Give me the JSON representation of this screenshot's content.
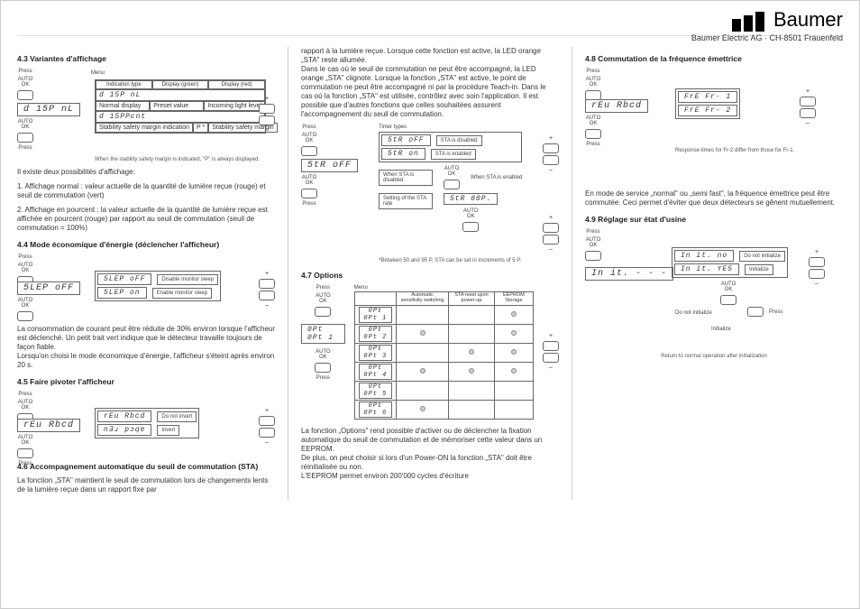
{
  "brand": "Baumer",
  "subbrand": "Baumer Electric AG · CH-8501 Frauenfeld",
  "s43": {
    "title": "4.3 Variantes d'affichage",
    "lcd_left": "d 15P  nL",
    "lcd_mid": "d 15P  nL",
    "lcd_bot": "d 15PPcnt",
    "menu": "Menu",
    "col1": "Indication type",
    "col2": "Display (green)",
    "col3": "Display (red)",
    "row1a": "Normal display",
    "row1b": "Preset value",
    "row1c": "Incoming light level",
    "row2a": "Stability safety margin indication",
    "row2b": "P *",
    "row2c": "Stability safety margin",
    "press": "Press",
    "autook": "AUTO\nOK",
    "footnote": "When the stability safety margin is indicated, \"P\" is always displayed.",
    "para1": "Il existe deux possibilités d'affichage:",
    "para2": "1. Affichage normal : valeur actuelle de la quantité de lumière reçue (rouge) et seuil de commutation (vert)",
    "para3": "2. Affichage en pourcent : la valeur actuelle de la quantité de lumière reçue est affichée en pourcent (rouge) par rapport au seuil de commutation (seuil de commutation = 100%)"
  },
  "s44": {
    "title": "4.4 Mode économique d'énergie (déclencher l'afficheur)",
    "lcd_left": "5LEP  oFF",
    "lcd_t1": "5LEP  oFF",
    "lcd_t2": "5LEP   on",
    "t1": "Disable monitor sleep",
    "t2": "Enable monitor sleep",
    "para": "La consommation de courant peut être réduite de 30% environ lorsque l'afficheur est déclenché. Un petit trait vert indique que le détecteur travaille toujours de façon fiable.\nLorsqu'on choisi le mode économique d'énergie, l'afficheur s'éteint après environ 20 s."
  },
  "s45": {
    "title": "4.5 Faire pivoter l'afficheur",
    "lcd_left": "rEu  Rbcd",
    "lcd_t1": "rEu  Rbcd",
    "lcd_t2": "nƎɹ  pɔqɐ",
    "t1": "Do not invert",
    "t2": "Invert"
  },
  "s46": {
    "title": "4.6 Accompagnement automatique du seuil de commutation (STA)",
    "para": "La fonction „STA\" maintient le seuil de commutation lors de changements lents de la lumière reçue dans un rapport fixe par"
  },
  "colB_top_para": "rapport à la lumière reçue. Lorsque cette fonction est active, la LED orange „STA\" reste allumée.\nDans le cas où le seuil de commutation ne peut être accompagné, la LED orange „STA\"  clignote. Lorsque la fonction „STA\" est active, le point de commutation ne peut être accompagné ni par la procédure Teach-in. Dans le cas où la fonction „STA\" est utilisée, contrôlez avec soin l'application. Il est possible que d'autres fonctions que celles souhaitées assurent l'accompagnement du seuil de commutation.",
  "sta": {
    "lcd_left": "5tR  oFF",
    "timer_types": "Timer types",
    "lcd_t1": "5tR  oFF",
    "lcd_t2": "5tR   on",
    "t1lbl": "STA is disabled",
    "t2lbl": "STA is enabled",
    "when": "When STA is disabled",
    "whensta": "When STA is enabled",
    "setting": "Setting of the STA rate",
    "lcd_rate": "5tR   80P.",
    "footnote": "*Between 50 and 95 P, STA can be set in increments of 5 P."
  },
  "s47": {
    "title": "4.7 Options",
    "lcd_left": "0Pt  0Pt 1",
    "menu": "Menu",
    "h1": "Automatic sensitivity switching",
    "h2": "STA reset upon power-up",
    "h3": "EEPROM Storage",
    "rows": [
      "0Pt  0Pt 1",
      "0Pt  0Pt 2",
      "0Pt  0Pt 3",
      "0Pt  0Pt 4",
      "0Pt  0Pt 5",
      "0Pt  0Pt 6"
    ],
    "bullets": [
      [
        false,
        false,
        true
      ],
      [
        true,
        false,
        true
      ],
      [
        false,
        true,
        true
      ],
      [
        true,
        true,
        true
      ],
      [
        false,
        false,
        false
      ],
      [
        true,
        false,
        false
      ]
    ],
    "para": "La fonction  „Options\" rend possible d'activer ou de déclencher la fixation automatique du seuil de commutation et de mémoriser cette valeur dans un EEPROM.\nDe plus, on peut choisir si lors d'un Power-ON la fonction „STA\" doit être réinitialisée ou non.\nL'EEPROM permet environ 200'000 cycles d'écriture"
  },
  "s48": {
    "title": "4.8 Commutation de la fréquence émettrice",
    "lcd_left": "rEu  Rbcd",
    "lcd_t1": "FrE  Fr- 1",
    "lcd_t2": "FrE  Fr- 2",
    "footnote": "Response times for Fr-2 differ from those for Fr-1.",
    "para": "En mode de service „normal\" ou „semi fast\", la fréquence émettrice peut être commutée. Ceci permet d'éviter que deux détecteurs se gênent mutuellement."
  },
  "s49": {
    "title": "4.9 Réglage sur état d'usine",
    "lcd_left": "In it.  - - -",
    "lcd_t1": "In it.   no",
    "lcd_t2": "In it.  YE5",
    "t1": "Do not initialize",
    "t2": "Initialize",
    "no_init": "Do not initialize",
    "init": "Initialize",
    "footnote": "Return to normal operation after initialization"
  },
  "labels": {
    "press": "Press",
    "autook": "AUTO\nOK",
    "plus": "+",
    "minus": "–"
  }
}
